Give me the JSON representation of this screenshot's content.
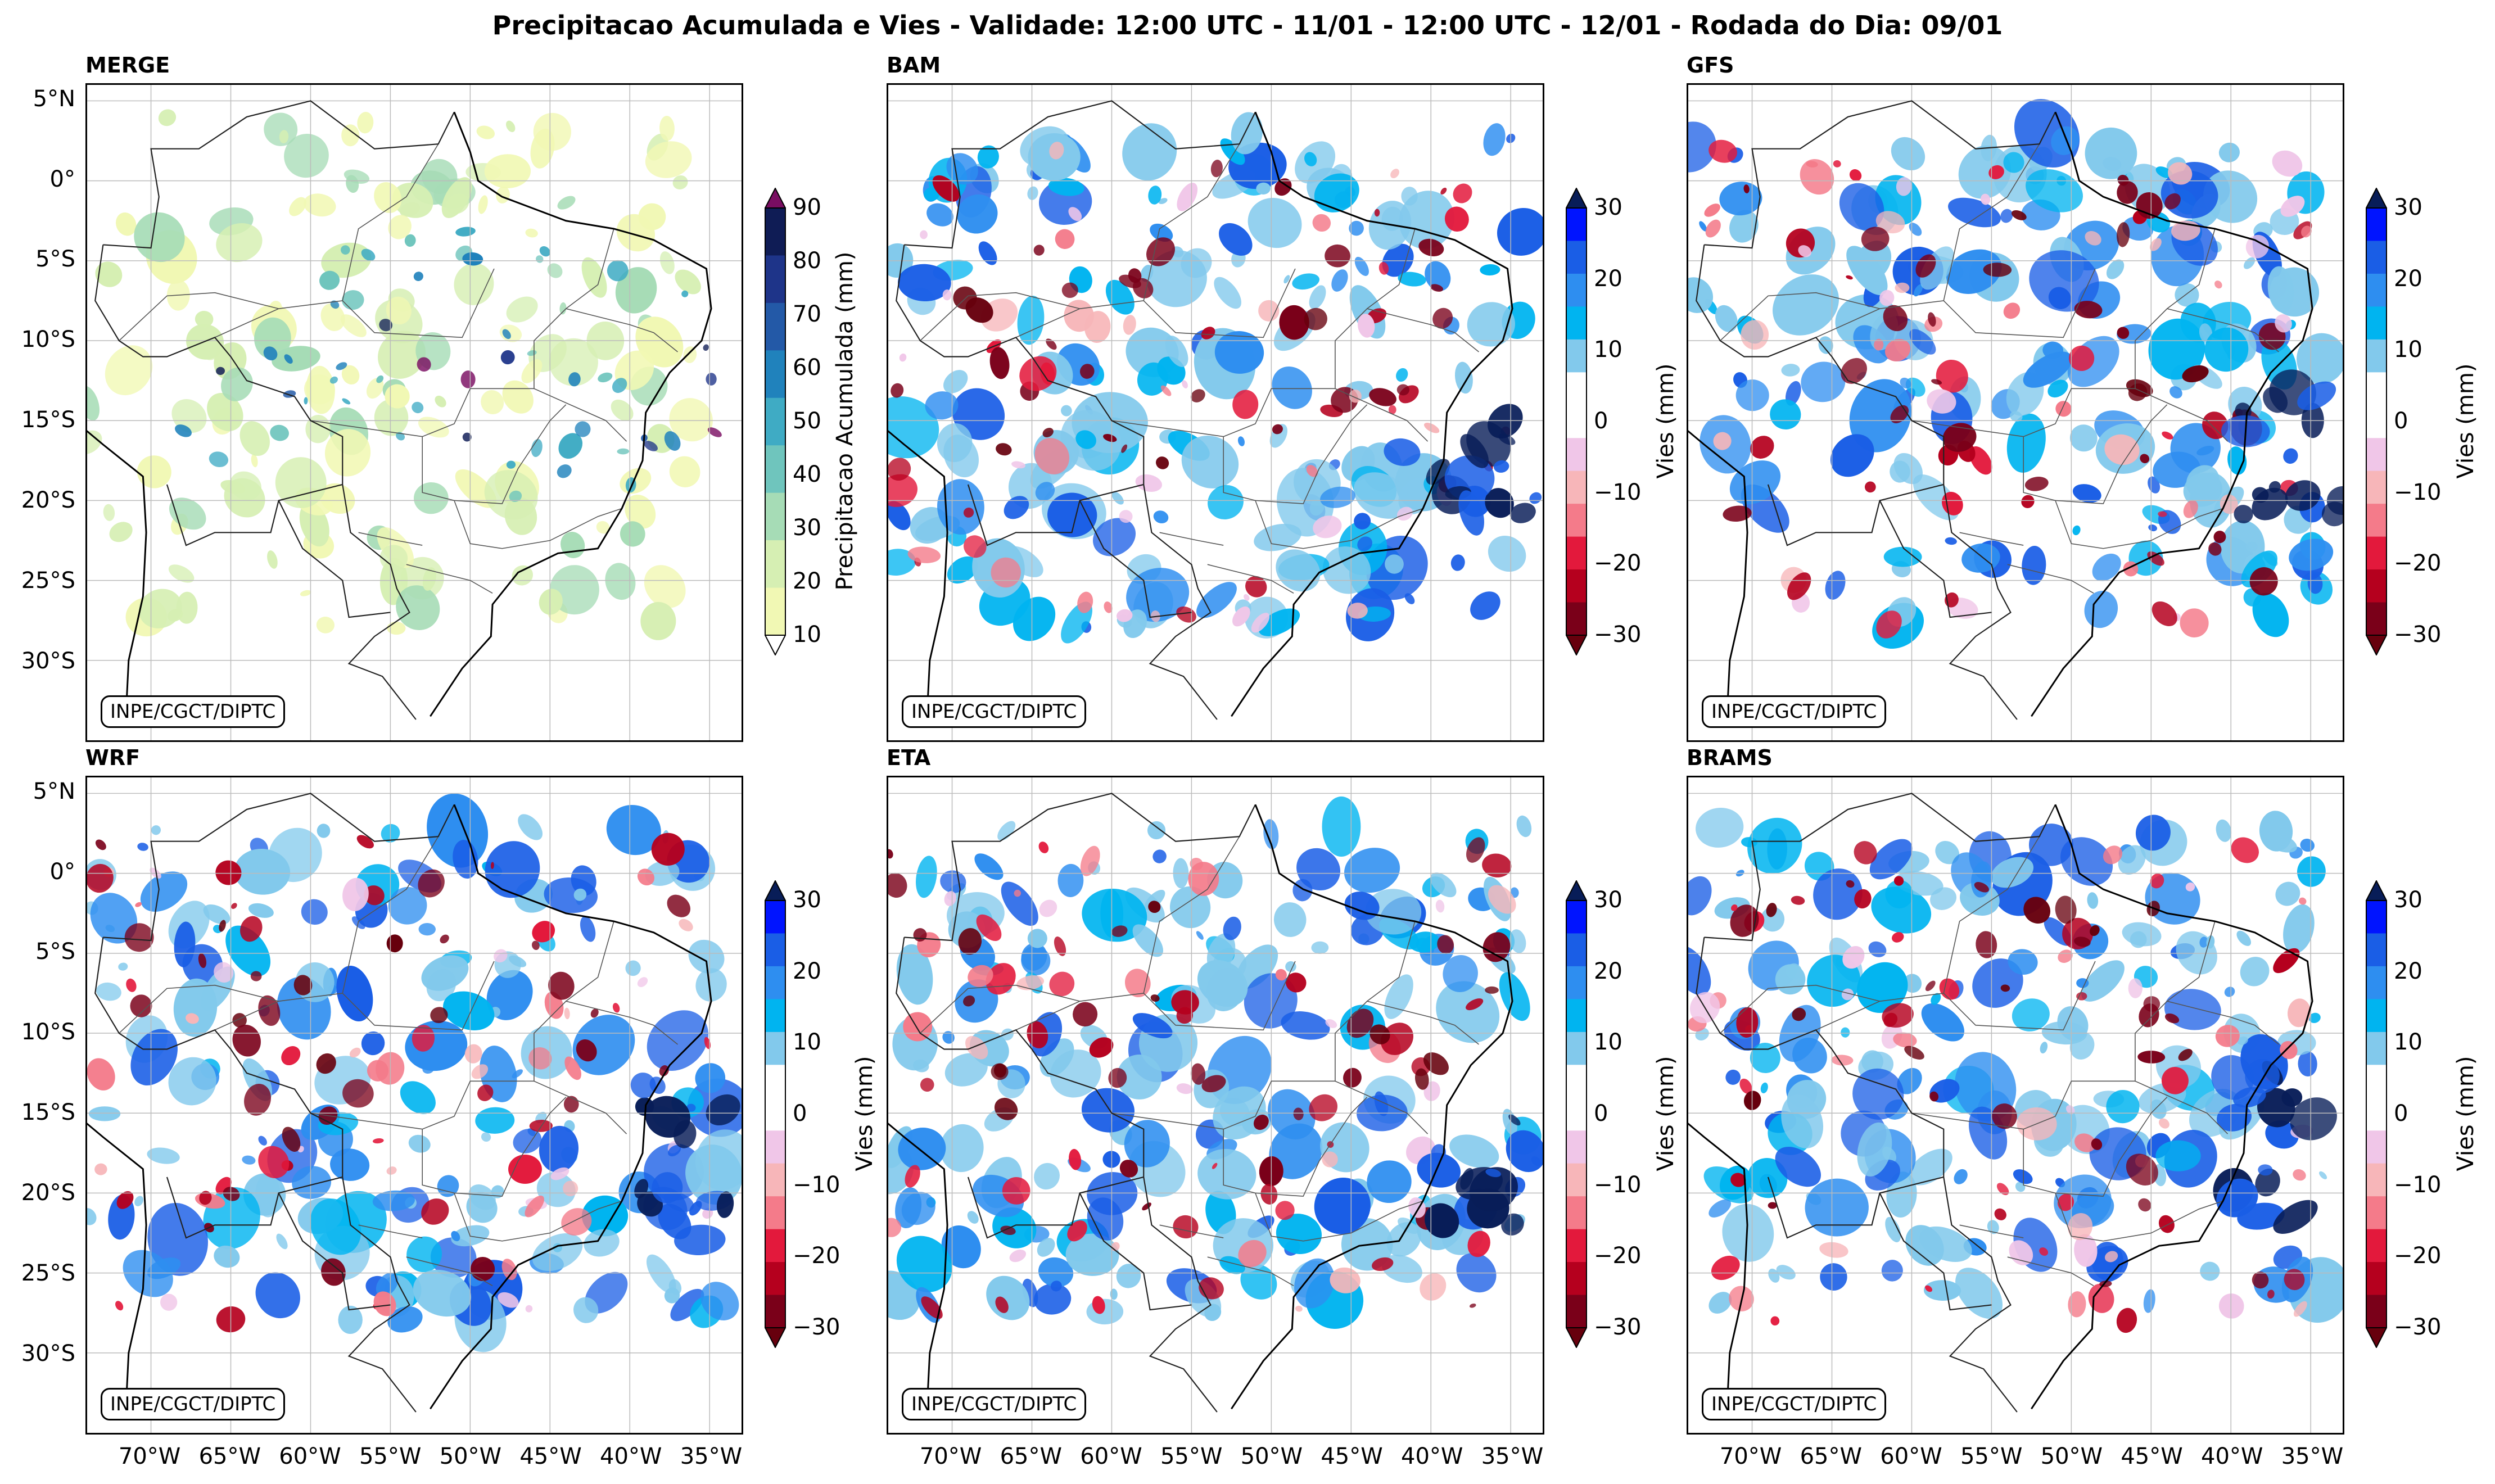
{
  "title": "Precipitacao Acumulada e Vies - Validade: 12:00 UTC - 11/01 - 12:00 UTC - 12/01 - Rodada do Dia: 09/01",
  "credit": "INPE/CGCT/DIPTC",
  "latitude_ticks": [
    "5°N",
    "0°",
    "5°S",
    "10°S",
    "15°S",
    "20°S",
    "25°S",
    "30°S"
  ],
  "longitude_ticks": [
    "70°W",
    "65°W",
    "60°W",
    "55°W",
    "50°W",
    "45°W",
    "40°W",
    "35°W"
  ],
  "panels": [
    {
      "name": "MERGE",
      "kind": "precip"
    },
    {
      "name": "BAM",
      "kind": "bias"
    },
    {
      "name": "GFS",
      "kind": "bias"
    },
    {
      "name": "WRF",
      "kind": "bias"
    },
    {
      "name": "ETA",
      "kind": "bias"
    },
    {
      "name": "BRAMS",
      "kind": "bias"
    }
  ],
  "precip_colorbar": {
    "label": "Precipitacao Acumulada (mm)",
    "ticks": [
      "10",
      "20",
      "30",
      "40",
      "50",
      "60",
      "70",
      "80",
      "90"
    ],
    "colors": [
      "#f1f8b4",
      "#d6efb3",
      "#a6dcb6",
      "#6fc5bd",
      "#3fabc4",
      "#2082bc",
      "#2359a7",
      "#1e3489",
      "#0f1c55"
    ],
    "over_color": "#7a0d62",
    "under_color": "#ffffff"
  },
  "bias_colorbar": {
    "label": "Vies (mm)",
    "ticks": [
      "30",
      "20",
      "10",
      "0",
      "−10",
      "−20",
      "−30"
    ],
    "colors": [
      "#7a0019",
      "#b5001e",
      "#e3193c",
      "#f47b8a",
      "#f7b6b9",
      "#f0c6e8",
      "#ffffff",
      "#ffffff",
      "#82c9ec",
      "#00b4f0",
      "#2e8ef0",
      "#1a5ee6",
      "#0014ff"
    ],
    "over_color": "#081d58",
    "under_color": "#67000d"
  }
}
